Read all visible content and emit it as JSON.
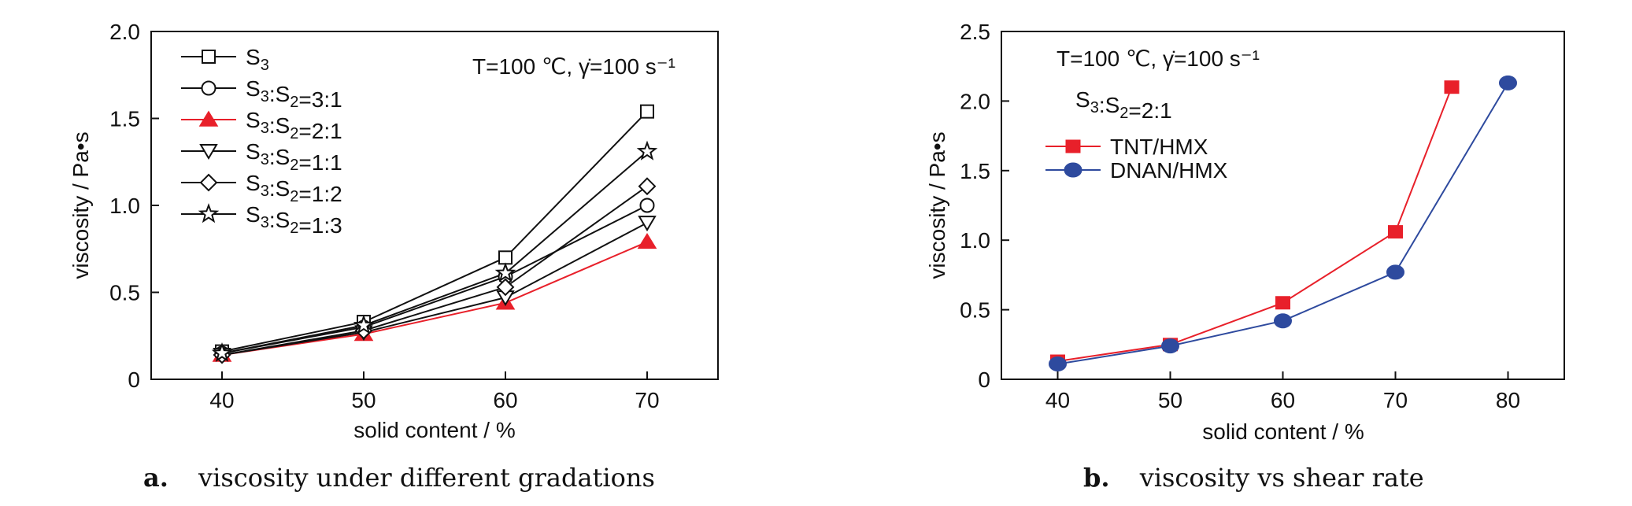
{
  "chart_data": [
    {
      "type": "line",
      "xlabel": "solid content / %",
      "ylabel": "viscosity / Pa•s",
      "xlim": [
        35,
        75
      ],
      "ylim": [
        0,
        2.0
      ],
      "x_ticks": [
        "40",
        "50",
        "60",
        "70"
      ],
      "y_ticks": [
        "0",
        "0.5",
        "1.0",
        "1.5",
        "2.0"
      ],
      "annotation": "T=100 ℃, γ̇=100 s⁻¹",
      "caption_letter": "a.",
      "caption_text": "viscosity under different gradations",
      "legend_position": "top-left",
      "grid": false,
      "x": [
        40,
        50,
        60,
        70
      ],
      "series": [
        {
          "name": "S3",
          "marker": "square",
          "color": "#111111",
          "values": [
            0.16,
            0.33,
            0.7,
            1.54
          ]
        },
        {
          "name": "S3:S2=3:1",
          "marker": "circle",
          "color": "#111111",
          "values": [
            0.15,
            0.3,
            0.59,
            1.0
          ]
        },
        {
          "name": "S3:S2=2:1",
          "marker": "triangle-up",
          "color": "#e8202a",
          "values": [
            0.14,
            0.26,
            0.44,
            0.79
          ]
        },
        {
          "name": "S3:S2=1:1",
          "marker": "triangle-down",
          "color": "#111111",
          "values": [
            0.14,
            0.27,
            0.47,
            0.9
          ]
        },
        {
          "name": "S3:S2=1:2",
          "marker": "diamond",
          "color": "#111111",
          "values": [
            0.14,
            0.28,
            0.53,
            1.11
          ]
        },
        {
          "name": "S3:S2=1:3",
          "marker": "star",
          "color": "#111111",
          "values": [
            0.15,
            0.31,
            0.61,
            1.31
          ]
        }
      ]
    },
    {
      "type": "line",
      "xlabel": "solid content / %",
      "ylabel": "viscosity / Pa•s",
      "xlim": [
        35,
        85
      ],
      "ylim": [
        0,
        2.5
      ],
      "x_ticks": [
        "40",
        "50",
        "60",
        "70",
        "80"
      ],
      "y_ticks": [
        "0",
        "0.5",
        "1.0",
        "1.5",
        "2.0",
        "2.5"
      ],
      "annotation": "T=100 ℃, γ̇=100 s⁻¹",
      "annotation2": "S3:S2=2:1",
      "caption_letter": "b.",
      "caption_text": "viscosity vs shear rate",
      "legend_position": "top-left",
      "grid": false,
      "series": [
        {
          "name": "TNT/HMX",
          "marker": "square-filled",
          "color": "#e8202a",
          "x": [
            40,
            50,
            60,
            70,
            75
          ],
          "values": [
            0.13,
            0.25,
            0.55,
            1.06,
            2.1
          ]
        },
        {
          "name": "DNAN/HMX",
          "marker": "ellipse-filled",
          "color": "#2e4a9e",
          "x": [
            40,
            50,
            60,
            70,
            80
          ],
          "values": [
            0.11,
            0.24,
            0.42,
            0.77,
            2.13
          ]
        }
      ]
    }
  ]
}
